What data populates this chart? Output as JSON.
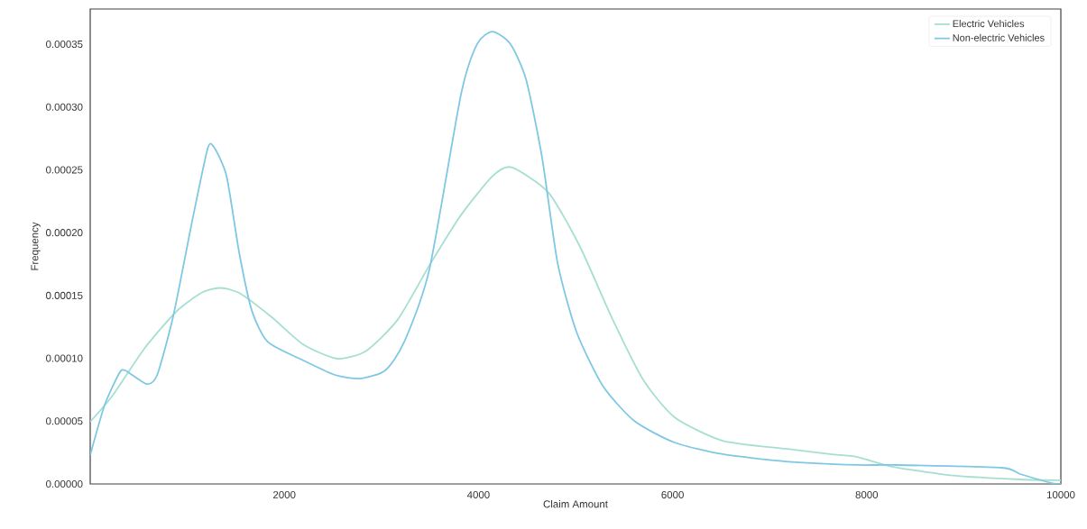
{
  "chart_data": {
    "type": "line",
    "xlabel": "Claim Amount",
    "ylabel": "Frequency",
    "xlim": [
      0,
      10000
    ],
    "xticks": [
      2000,
      4000,
      6000,
      8000,
      10000
    ],
    "ylim": [
      0,
      0.000378
    ],
    "yticks": [
      {
        "value": 0,
        "label": "0.00000"
      },
      {
        "value": 5e-05,
        "label": "0.00005"
      },
      {
        "value": 0.0001,
        "label": "0.00010"
      },
      {
        "value": 0.00015,
        "label": "0.00015"
      },
      {
        "value": 0.0002,
        "label": "0.00020"
      },
      {
        "value": 0.00025,
        "label": "0.00025"
      },
      {
        "value": 0.0003,
        "label": "0.00030"
      },
      {
        "value": 0.00035,
        "label": "0.00035"
      }
    ],
    "grid": false,
    "legend": "top right",
    "marker": "none",
    "line_style": "solid",
    "series": [
      {
        "name": "Electric Vehicles",
        "color": "#a6dfd2",
        "x": [
          0,
          230,
          560,
          885,
          1145,
          1330,
          1535,
          1865,
          2195,
          2545,
          2845,
          3170,
          3495,
          3820,
          4145,
          4340,
          4720,
          5045,
          5370,
          5695,
          6020,
          6515,
          7165,
          7620,
          7900,
          8270,
          8920,
          9580,
          10000
        ],
        "values": [
          4.95e-05,
          7.03e-05,
          0.000108,
          0.000137,
          0.000152,
          0.000156,
          0.000152,
          0.000133,
          0.000111,
          9.97e-05,
          0.000106,
          0.000131,
          0.000174,
          0.000214,
          0.000245,
          0.000252,
          0.000232,
          0.000189,
          0.000133,
          8.32e-05,
          5.31e-05,
          3.44e-05,
          2.8e-05,
          2.37e-05,
          2.15e-05,
          1.36e-05,
          6.5e-06,
          3.6e-06,
          2.9e-06
        ]
      },
      {
        "name": "Non-electric Vehicles",
        "color": "#7ec8e3",
        "x": [
          0,
          150,
          300,
          360,
          580,
          690,
          855,
          1050,
          1210,
          1275,
          1405,
          1535,
          1665,
          1830,
          2195,
          2520,
          2780,
          3040,
          3235,
          3495,
          3820,
          3985,
          4145,
          4330,
          4490,
          4655,
          4815,
          5010,
          5280,
          5605,
          6020,
          6515,
          7165,
          7900,
          8270,
          9385,
          9580,
          9905,
          10000
        ],
        "values": [
          2.3e-05,
          6.31e-05,
          8.82e-05,
          9.04e-05,
          7.96e-05,
          8.68e-05,
          0.0001334,
          0.000209,
          0.000267,
          0.000268,
          0.000245,
          0.000184,
          0.000138,
          0.000113,
          9.83e-05,
          8.68e-05,
          8.39e-05,
          9.04e-05,
          0.000113,
          0.000171,
          0.00031,
          0.00035,
          0.00036,
          0.00035,
          0.000322,
          0.00026,
          0.000176,
          0.000121,
          7.82e-05,
          5.02e-05,
          3.3e-05,
          2.37e-05,
          1.79e-05,
          1.51e-05,
          1.51e-05,
          1.29e-05,
          7.9e-06,
          7e-07,
          0
        ]
      }
    ]
  }
}
